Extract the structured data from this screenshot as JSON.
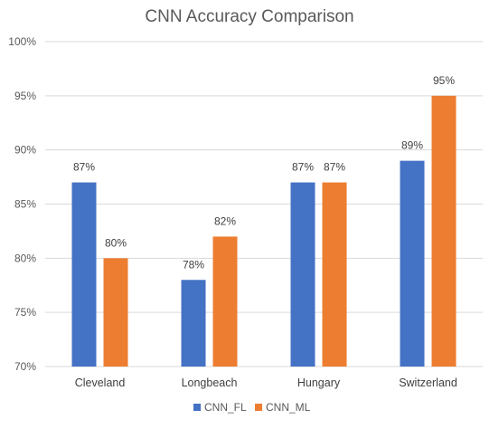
{
  "chart_data": {
    "type": "bar",
    "title": "CNN Accuracy Comparison",
    "xlabel": "",
    "ylabel": "",
    "categories": [
      "Cleveland",
      "Longbeach",
      "Hungary",
      "Switzerland"
    ],
    "series": [
      {
        "name": "CNN_FL",
        "color": "#4472C4",
        "values": [
          87,
          78,
          87,
          89
        ],
        "labels": [
          "87%",
          "78%",
          "87%",
          "89%"
        ]
      },
      {
        "name": "CNN_ML",
        "color": "#ED7D31",
        "values": [
          80,
          82,
          87,
          95
        ],
        "labels": [
          "80%",
          "82%",
          "87%",
          "95%"
        ]
      }
    ],
    "ylim": [
      70,
      100
    ],
    "yticks": [
      70,
      75,
      80,
      85,
      90,
      95,
      100
    ],
    "ytick_labels": [
      "70%",
      "75%",
      "80%",
      "85%",
      "90%",
      "95%",
      "100%"
    ],
    "grid": true,
    "legend_position": "bottom",
    "gridline_color": "#D9D9D9"
  }
}
